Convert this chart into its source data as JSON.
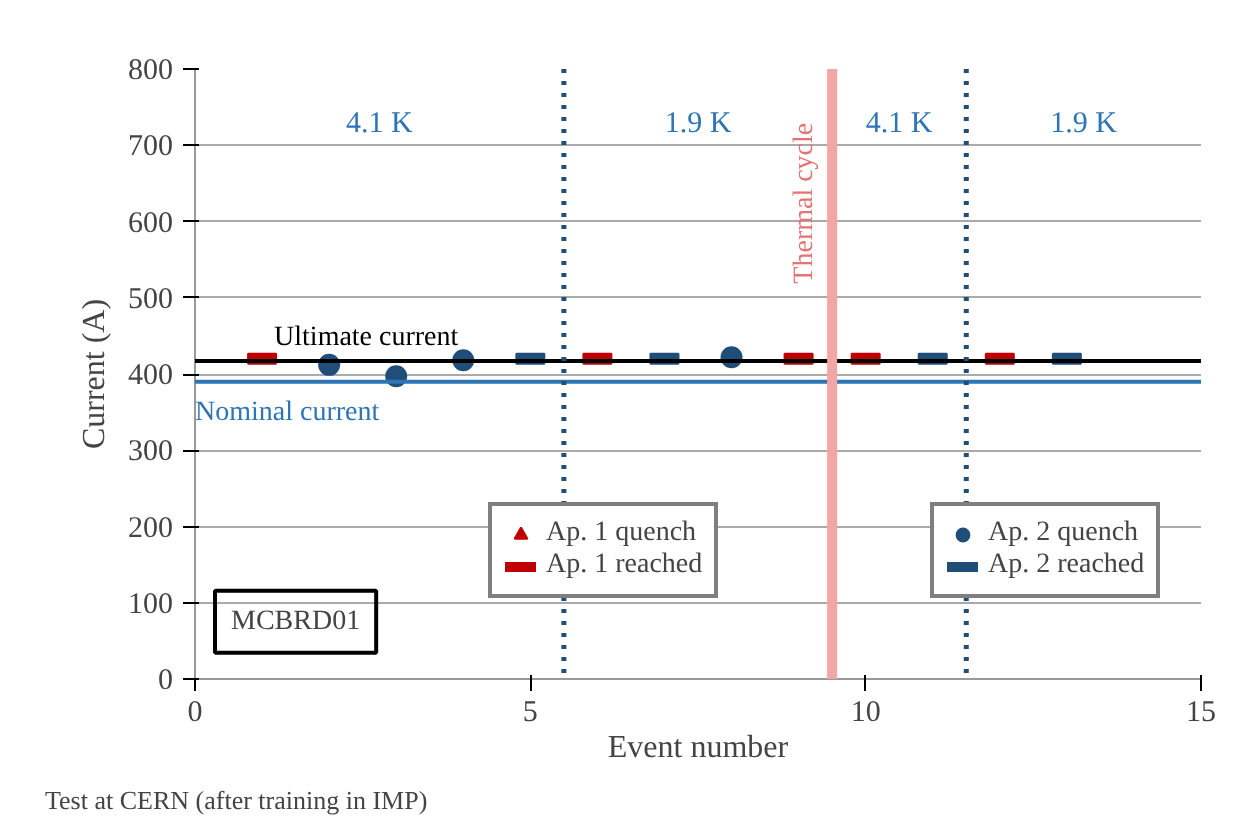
{
  "chart_data": {
    "type": "scatter",
    "xlabel": "Event number",
    "ylabel": "Current (A)",
    "xlim": [
      0,
      15
    ],
    "ylim": [
      0,
      800
    ],
    "xticks": [
      0,
      5,
      10,
      15
    ],
    "yticks": [
      0,
      100,
      200,
      300,
      400,
      500,
      600,
      700,
      800
    ],
    "grid": "y",
    "legend": "bottom",
    "series": [
      {
        "name": "Ap. 1 quench",
        "color": "#c00000",
        "marker": "triangle"
      },
      {
        "name": "Ap. 1 reached",
        "color": "#c00000",
        "x": [
          1,
          6,
          9,
          10,
          12
        ],
        "values": [
          420,
          420,
          420,
          420,
          420
        ]
      },
      {
        "name": "Ap. 2 quench",
        "color": "#1f4e79",
        "marker": "circle",
        "x": [
          2,
          3,
          4,
          8
        ],
        "values": [
          412,
          397,
          418,
          422
        ]
      },
      {
        "name": "Ap. 2 reached",
        "color": "#1f4e79",
        "x": [
          5,
          7,
          11,
          13
        ],
        "values": [
          420,
          420,
          420,
          420
        ]
      }
    ],
    "ref_lines": [
      {
        "axis": "y",
        "value": 417,
        "label": "Ultimate current",
        "color": "#000000",
        "line_style": "solid"
      },
      {
        "axis": "y",
        "value": 390,
        "label": "Nominal current",
        "color": "#2e75b6",
        "line_style": "solid"
      },
      {
        "axis": "x",
        "value": 5.5,
        "color": "#1f4e79",
        "line_style": "dotted"
      },
      {
        "axis": "x",
        "value": 11.5,
        "color": "#1f4e79",
        "line_style": "dotted"
      },
      {
        "axis": "x",
        "value": 9.5,
        "label": "Thermal cycle",
        "color": "#f4a6a6",
        "line_style": "solid"
      }
    ],
    "annotations": [
      "4.1 K",
      "1.9 K",
      "4.1 K",
      "1.9 K",
      "MCBRD01",
      "Test at CERN (after training in IMP)"
    ]
  }
}
